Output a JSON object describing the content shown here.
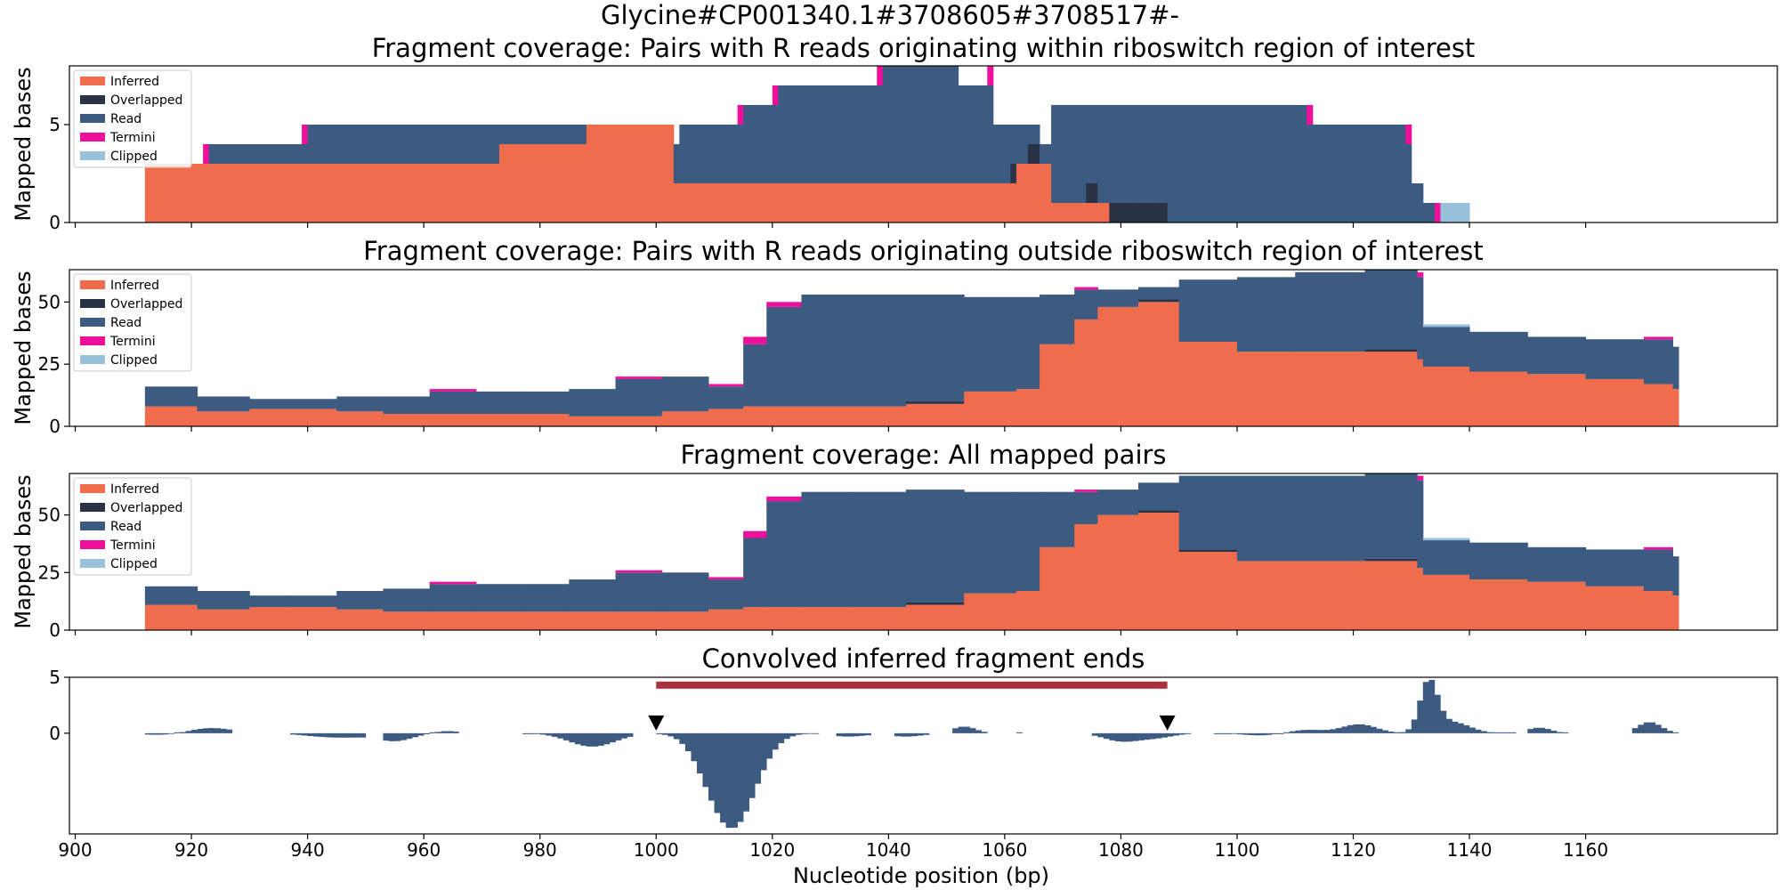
{
  "figure": {
    "title": "Glycine#CP001340.1#3708605#3708517#-",
    "xlabel": "Nucleotide position (bp)"
  },
  "colors": {
    "Inferred": "#ef6c4d",
    "Overlapped": "#2a3246",
    "Read": "#3d5a80",
    "Termini": "#ee0f9a",
    "Clipped": "#98c1d9",
    "convolved": "#3d5a80",
    "region_bar": "#a83240",
    "marker": "#000000"
  },
  "legend": [
    "Inferred",
    "Overlapped",
    "Read",
    "Termini",
    "Clipped"
  ],
  "chart_data": [
    {
      "type": "area",
      "title": "Fragment coverage: Pairs with R reads originating within riboswitch region of interest",
      "ylabel": "Mapped bases",
      "xlim": [
        899,
        1193
      ],
      "ylim": [
        0,
        8
      ],
      "yticks": [
        0,
        5
      ],
      "legend_placement": "upper-left",
      "segments": [
        {
          "x0": 912,
          "x1": 916,
          "Inferred": 3,
          "Overlapped": 0,
          "Read": 0,
          "Termini": 0,
          "Clipped": 0
        },
        {
          "x0": 916,
          "x1": 922,
          "Inferred": 3,
          "Overlapped": 0,
          "Read": 0,
          "Termini": 0,
          "Clipped": 0
        },
        {
          "x0": 922,
          "x1": 923,
          "Inferred": 3,
          "Overlapped": 0,
          "Read": 0,
          "Termini": 1,
          "Clipped": 0
        },
        {
          "x0": 923,
          "x1": 939,
          "Inferred": 3,
          "Overlapped": 0,
          "Read": 1,
          "Termini": 0,
          "Clipped": 0
        },
        {
          "x0": 939,
          "x1": 940,
          "Inferred": 3,
          "Overlapped": 0,
          "Read": 1,
          "Termini": 1,
          "Clipped": 0
        },
        {
          "x0": 940,
          "x1": 973,
          "Inferred": 3,
          "Overlapped": 0,
          "Read": 2,
          "Termini": 0,
          "Clipped": 0
        },
        {
          "x0": 973,
          "x1": 988,
          "Inferred": 4,
          "Overlapped": 0,
          "Read": 1,
          "Termini": 0,
          "Clipped": 0
        },
        {
          "x0": 988,
          "x1": 1003,
          "Inferred": 5,
          "Overlapped": 0,
          "Read": 0,
          "Termini": 0,
          "Clipped": 0
        },
        {
          "x0": 1003,
          "x1": 1004,
          "Inferred": 2,
          "Overlapped": 0,
          "Read": 2,
          "Termini": 0,
          "Clipped": 0
        },
        {
          "x0": 1004,
          "x1": 1014,
          "Inferred": 2,
          "Overlapped": 0,
          "Read": 3,
          "Termini": 0,
          "Clipped": 0
        },
        {
          "x0": 1014,
          "x1": 1015,
          "Inferred": 2,
          "Overlapped": 0,
          "Read": 3,
          "Termini": 1,
          "Clipped": 0
        },
        {
          "x0": 1015,
          "x1": 1020,
          "Inferred": 2,
          "Overlapped": 0,
          "Read": 4,
          "Termini": 0,
          "Clipped": 0
        },
        {
          "x0": 1020,
          "x1": 1021,
          "Inferred": 2,
          "Overlapped": 0,
          "Read": 4,
          "Termini": 1,
          "Clipped": 0
        },
        {
          "x0": 1021,
          "x1": 1038,
          "Inferred": 2,
          "Overlapped": 0,
          "Read": 5,
          "Termini": 0,
          "Clipped": 0
        },
        {
          "x0": 1038,
          "x1": 1039,
          "Inferred": 2,
          "Overlapped": 0,
          "Read": 5,
          "Termini": 1,
          "Clipped": 0
        },
        {
          "x0": 1039,
          "x1": 1042,
          "Inferred": 2,
          "Overlapped": 0,
          "Read": 6,
          "Termini": 0,
          "Clipped": 0
        },
        {
          "x0": 1042,
          "x1": 1043,
          "Inferred": 2,
          "Overlapped": 0,
          "Read": 6,
          "Termini": 2,
          "Clipped": 0
        },
        {
          "x0": 1043,
          "x1": 1051,
          "Inferred": 2,
          "Overlapped": 0,
          "Read": 7,
          "Termini": 0,
          "Clipped": 0
        },
        {
          "x0": 1051,
          "x1": 1052,
          "Inferred": 2,
          "Overlapped": 0,
          "Read": 7,
          "Termini": 2,
          "Clipped": 0
        },
        {
          "x0": 1052,
          "x1": 1057,
          "Inferred": 2,
          "Overlapped": 0,
          "Read": 5,
          "Termini": 0,
          "Clipped": 0
        },
        {
          "x0": 1057,
          "x1": 1058,
          "Inferred": 2,
          "Overlapped": 0,
          "Read": 5,
          "Termini": 1,
          "Clipped": 0
        },
        {
          "x0": 1058,
          "x1": 1061,
          "Inferred": 2,
          "Overlapped": 0,
          "Read": 3,
          "Termini": 0,
          "Clipped": 0
        },
        {
          "x0": 1061,
          "x1": 1062,
          "Inferred": 2,
          "Overlapped": 1,
          "Read": 2,
          "Termini": 0,
          "Clipped": 0
        },
        {
          "x0": 1062,
          "x1": 1064,
          "Inferred": 3,
          "Overlapped": 0,
          "Read": 2,
          "Termini": 0,
          "Clipped": 0
        },
        {
          "x0": 1064,
          "x1": 1066,
          "Inferred": 3,
          "Overlapped": 1,
          "Read": 1,
          "Termini": 0,
          "Clipped": 0
        },
        {
          "x0": 1066,
          "x1": 1068,
          "Inferred": 3,
          "Overlapped": 0,
          "Read": 1,
          "Termini": 0,
          "Clipped": 0
        },
        {
          "x0": 1068,
          "x1": 1074,
          "Inferred": 1,
          "Overlapped": 0,
          "Read": 5,
          "Termini": 0,
          "Clipped": 0
        },
        {
          "x0": 1074,
          "x1": 1076,
          "Inferred": 1,
          "Overlapped": 1,
          "Read": 4,
          "Termini": 0,
          "Clipped": 0
        },
        {
          "x0": 1076,
          "x1": 1078,
          "Inferred": 1,
          "Overlapped": 0,
          "Read": 5,
          "Termini": 0,
          "Clipped": 0
        },
        {
          "x0": 1078,
          "x1": 1082,
          "Inferred": 0,
          "Overlapped": 1,
          "Read": 5,
          "Termini": 0,
          "Clipped": 0
        },
        {
          "x0": 1082,
          "x1": 1084,
          "Inferred": 0,
          "Overlapped": 1,
          "Read": 5,
          "Termini": 0,
          "Clipped": 0
        },
        {
          "x0": 1084,
          "x1": 1086,
          "Inferred": 0,
          "Overlapped": 1,
          "Read": 5,
          "Termini": 0,
          "Clipped": 0
        },
        {
          "x0": 1086,
          "x1": 1088,
          "Inferred": 0,
          "Overlapped": 1,
          "Read": 5,
          "Termini": 0,
          "Clipped": 0
        },
        {
          "x0": 1088,
          "x1": 1090,
          "Inferred": 0,
          "Overlapped": 0,
          "Read": 6,
          "Termini": 0,
          "Clipped": 0
        },
        {
          "x0": 1090,
          "x1": 1112,
          "Inferred": 0,
          "Overlapped": 0,
          "Read": 6,
          "Termini": 0,
          "Clipped": 0
        },
        {
          "x0": 1112,
          "x1": 1113,
          "Inferred": 0,
          "Overlapped": 0,
          "Read": 5,
          "Termini": 1,
          "Clipped": 0
        },
        {
          "x0": 1113,
          "x1": 1129,
          "Inferred": 0,
          "Overlapped": 0,
          "Read": 5,
          "Termini": 0,
          "Clipped": 0
        },
        {
          "x0": 1129,
          "x1": 1130,
          "Inferred": 0,
          "Overlapped": 0,
          "Read": 4,
          "Termini": 1,
          "Clipped": 0
        },
        {
          "x0": 1130,
          "x1": 1132,
          "Inferred": 0,
          "Overlapped": 0,
          "Read": 2,
          "Termini": 0,
          "Clipped": 0
        },
        {
          "x0": 1132,
          "x1": 1134,
          "Inferred": 0,
          "Overlapped": 0,
          "Read": 1,
          "Termini": 0,
          "Clipped": 0
        },
        {
          "x0": 1134,
          "x1": 1135,
          "Inferred": 0,
          "Overlapped": 0,
          "Read": 0,
          "Termini": 1,
          "Clipped": 0
        },
        {
          "x0": 1135,
          "x1": 1140,
          "Inferred": 0,
          "Overlapped": 0,
          "Read": 0,
          "Termini": 0,
          "Clipped": 1
        }
      ]
    },
    {
      "type": "area",
      "title": "Fragment coverage: Pairs with R reads originating outside riboswitch region of interest",
      "ylabel": "Mapped bases",
      "xlim": [
        899,
        1193
      ],
      "ylim": [
        0,
        63
      ],
      "yticks": [
        0,
        25,
        50
      ],
      "legend_placement": "upper-left",
      "profile": {
        "x": [
          912,
          921,
          930,
          937,
          945,
          953,
          961,
          969,
          977,
          985,
          993,
          1001,
          1009,
          1015,
          1019,
          1025,
          1033,
          1043,
          1053,
          1062,
          1066,
          1072,
          1076,
          1083,
          1090,
          1100,
          1110,
          1122,
          1131,
          1132,
          1140,
          1150,
          1160,
          1170,
          1175
        ],
        "Inferred": [
          8,
          6,
          7,
          7,
          6,
          5,
          5,
          5,
          5,
          4,
          4,
          6,
          7,
          8,
          8,
          8,
          8,
          9,
          14,
          15,
          33,
          43,
          48,
          50,
          34,
          30,
          30,
          30,
          27,
          24,
          22,
          21,
          19,
          17,
          15
        ],
        "Overlapped": [
          0,
          0,
          0,
          0,
          0,
          0,
          0,
          0,
          0,
          0,
          0,
          0,
          0,
          0,
          0,
          0,
          0,
          1,
          0,
          0,
          0,
          0,
          0,
          1,
          0,
          0,
          0,
          1,
          0,
          0,
          0,
          0,
          0,
          0,
          0
        ],
        "Read": [
          8,
          6,
          4,
          4,
          6,
          7,
          9,
          9,
          9,
          11,
          15,
          14,
          9,
          25,
          40,
          45,
          45,
          43,
          38,
          37,
          20,
          12,
          7,
          5,
          25,
          30,
          32,
          32,
          33,
          16,
          16,
          15,
          16,
          18,
          17
        ],
        "Termini": [
          0,
          0,
          0,
          0,
          0,
          0,
          1,
          0,
          0,
          0,
          1,
          0,
          1,
          3,
          2,
          0,
          0,
          0,
          0,
          0,
          0,
          1,
          0,
          0,
          0,
          0,
          0,
          0,
          2,
          0,
          0,
          0,
          0,
          1,
          0
        ],
        "Clipped": [
          0,
          0,
          0,
          0,
          0,
          0,
          0,
          0,
          0,
          0,
          0,
          0,
          0,
          0,
          0,
          0,
          0,
          0,
          0,
          0,
          0,
          0,
          0,
          0,
          0,
          0,
          0,
          0,
          0,
          1,
          0,
          0,
          0,
          0,
          0
        ]
      }
    },
    {
      "type": "area",
      "title": "Fragment coverage: All mapped pairs",
      "ylabel": "Mapped bases",
      "xlim": [
        899,
        1193
      ],
      "ylim": [
        0,
        68
      ],
      "yticks": [
        0,
        25,
        50
      ],
      "legend_placement": "upper-left",
      "profile": {
        "x": [
          912,
          921,
          930,
          937,
          945,
          953,
          961,
          969,
          977,
          985,
          993,
          1001,
          1009,
          1015,
          1019,
          1025,
          1033,
          1043,
          1053,
          1062,
          1066,
          1072,
          1076,
          1083,
          1090,
          1100,
          1110,
          1122,
          1131,
          1132,
          1140,
          1150,
          1160,
          1170,
          1175
        ],
        "Inferred": [
          11,
          9,
          10,
          10,
          9,
          8,
          8,
          8,
          8,
          8,
          8,
          8,
          9,
          10,
          10,
          10,
          10,
          11,
          16,
          17,
          36,
          46,
          50,
          51,
          34,
          30,
          30,
          30,
          27,
          24,
          22,
          21,
          19,
          17,
          15
        ],
        "Overlapped": [
          0,
          0,
          0,
          0,
          0,
          0,
          0,
          0,
          0,
          0,
          0,
          0,
          0,
          0,
          0,
          0,
          0,
          1,
          0,
          0,
          0,
          0,
          0,
          1,
          1,
          0,
          0,
          1,
          0,
          0,
          0,
          0,
          0,
          0,
          0
        ],
        "Read": [
          8,
          8,
          5,
          5,
          8,
          10,
          12,
          12,
          12,
          14,
          17,
          17,
          13,
          30,
          46,
          50,
          50,
          49,
          44,
          43,
          24,
          14,
          11,
          12,
          32,
          37,
          37,
          37,
          38,
          15,
          16,
          15,
          16,
          18,
          17
        ],
        "Termini": [
          0,
          0,
          0,
          0,
          0,
          0,
          1,
          0,
          0,
          0,
          1,
          0,
          1,
          3,
          2,
          0,
          0,
          0,
          0,
          0,
          0,
          1,
          0,
          0,
          0,
          0,
          0,
          0,
          2,
          0,
          0,
          0,
          0,
          1,
          0
        ],
        "Clipped": [
          0,
          0,
          0,
          0,
          0,
          0,
          0,
          0,
          0,
          0,
          0,
          0,
          0,
          0,
          0,
          0,
          0,
          0,
          0,
          0,
          0,
          0,
          0,
          0,
          0,
          0,
          0,
          0,
          0,
          1,
          0,
          0,
          0,
          0,
          0
        ]
      }
    },
    {
      "type": "bar",
      "title": "Convolved inferred fragment ends",
      "xlabel": "Nucleotide position (bp)",
      "xlim": [
        899,
        1193
      ],
      "ylim": [
        -9,
        5
      ],
      "yticks": [
        0,
        5
      ],
      "xticks": [
        900,
        920,
        940,
        960,
        980,
        1000,
        1020,
        1040,
        1060,
        1080,
        1100,
        1120,
        1140,
        1160
      ],
      "region_bar": {
        "x0": 1000,
        "x1": 1088,
        "y": 4.3
      },
      "markers": [
        1000,
        1088
      ],
      "bumps": [
        {
          "c": 916,
          "w": 4,
          "a": -0.2
        },
        {
          "c": 923,
          "w": 4,
          "a": 0.5
        },
        {
          "c": 943,
          "w": 4,
          "a": -0.3
        },
        {
          "c": 948,
          "w": 3,
          "a": -0.2
        },
        {
          "c": 955,
          "w": 3,
          "a": -0.7
        },
        {
          "c": 964,
          "w": 2,
          "a": 0.2
        },
        {
          "c": 989,
          "w": 4,
          "a": -1.2
        },
        {
          "c": 1008,
          "w": 2,
          "a": -0.3
        },
        {
          "c": 1013,
          "w": 4,
          "a": -8.5
        },
        {
          "c": 1033,
          "w": 3,
          "a": -0.3
        },
        {
          "c": 1043,
          "w": 3,
          "a": -0.3
        },
        {
          "c": 1053,
          "w": 2,
          "a": 0.6
        },
        {
          "c": 1080,
          "w": 3,
          "a": -0.7
        },
        {
          "c": 1086,
          "w": 3,
          "a": -0.4
        },
        {
          "c": 1104,
          "w": 3,
          "a": -0.2
        },
        {
          "c": 1112,
          "w": 3,
          "a": 0.3
        },
        {
          "c": 1121,
          "w": 3,
          "a": 0.8
        },
        {
          "c": 1133,
          "w": 1.5,
          "a": 4.5
        },
        {
          "c": 1137,
          "w": 3,
          "a": 1.0
        },
        {
          "c": 1152,
          "w": 2,
          "a": 0.5
        },
        {
          "c": 1171,
          "w": 2,
          "a": 1.0
        }
      ],
      "gaps": [
        [
          927,
          937
        ],
        [
          950,
          953
        ],
        [
          966,
          977
        ],
        [
          996,
          1000
        ],
        [
          1028,
          1031
        ],
        [
          1037,
          1041
        ],
        [
          1047,
          1051
        ],
        [
          1057,
          1062
        ],
        [
          1063,
          1075
        ],
        [
          1092,
          1096
        ],
        [
          1148,
          1150
        ],
        [
          1157,
          1168
        ]
      ]
    }
  ]
}
